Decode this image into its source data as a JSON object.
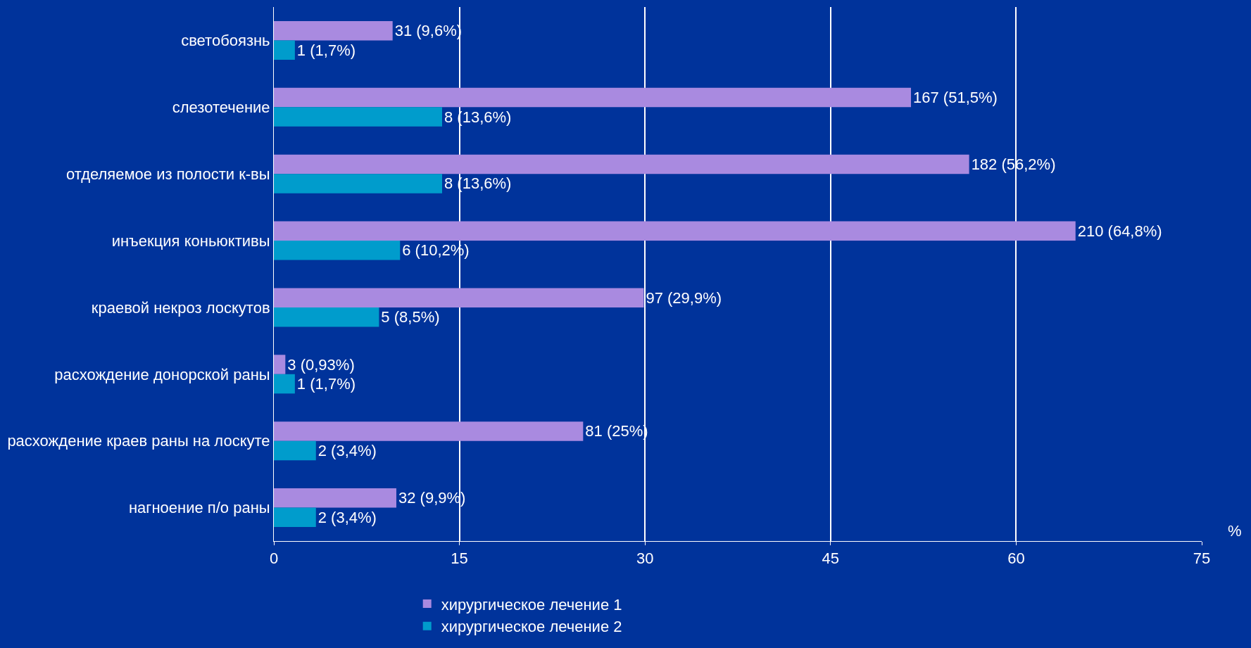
{
  "chart_data": {
    "type": "bar",
    "orientation": "horizontal",
    "categories": [
      "светобоязнь",
      "слезотечение",
      "отделяемое из полости к-вы",
      "инъекция коньюктивы",
      "краевой некроз лоскутов",
      "расхождение донорской раны",
      "расхождение краев раны на лоскуте",
      "нагноение п/о раны"
    ],
    "series": [
      {
        "name": "хирургическое лечение 1",
        "color": "#a98ae0",
        "values": [
          9.6,
          51.5,
          56.2,
          64.8,
          29.9,
          0.93,
          25,
          9.9
        ],
        "value_labels": [
          "31 (9,6%)",
          "167 (51,5%)",
          "182 (56,2%)",
          "210 (64,8%)",
          "97 (29,9%)",
          "3 (0,93%)",
          "81 (25%)",
          "32 (9,9%)"
        ]
      },
      {
        "name": "хирургическое лечение 2",
        "color": "#009ccc",
        "values": [
          1.7,
          13.6,
          13.6,
          10.2,
          8.5,
          1.7,
          3.4,
          3.4
        ],
        "value_labels": [
          "1 (1,7%)",
          "8 (13,6%)",
          "8 (13,6%)",
          "6 (10,2%)",
          "5 (8,5%)",
          "1 (1,7%)",
          "2 (3,4%)",
          "2 (3,4%)"
        ]
      }
    ],
    "xlabel": "%",
    "xlim": [
      0,
      75
    ],
    "xticks": [
      0,
      15,
      30,
      45,
      60,
      75
    ],
    "grid": "x",
    "legend": "bottom"
  }
}
